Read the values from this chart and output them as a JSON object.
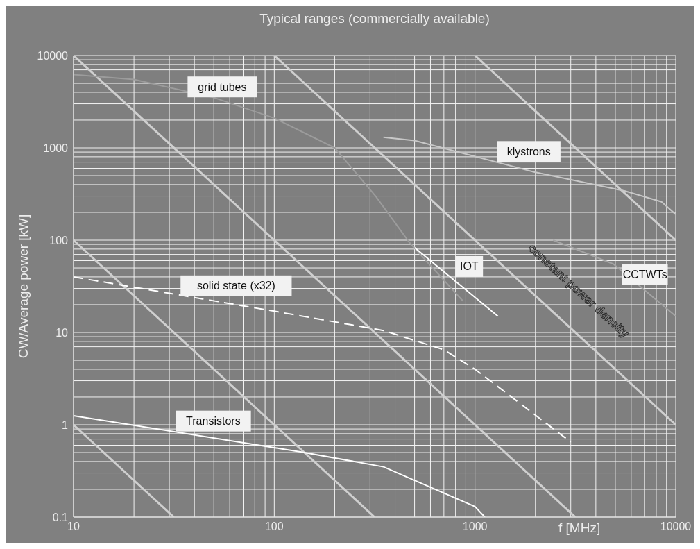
{
  "chart_data": {
    "type": "line",
    "title": "Typical ranges (commercially available)",
    "xlabel": "f [MHz]",
    "ylabel": "CW/Average power [kW]",
    "log": "xy",
    "grid": true,
    "legend": false,
    "marker": "none",
    "xlim": [
      10,
      10000
    ],
    "ylim": [
      0.1,
      10000
    ],
    "xticks": [
      10,
      {
        "value": 20,
        "label": null
      },
      {
        "value": 30,
        "label": null
      },
      {
        "value": 40,
        "label": null
      },
      {
        "value": 50,
        "label": null
      },
      {
        "value": 60,
        "label": null
      },
      {
        "value": 70,
        "label": null
      },
      {
        "value": 80,
        "label": null
      },
      {
        "value": 90,
        "label": null
      },
      100,
      {
        "value": 200,
        "label": null
      },
      {
        "value": 300,
        "label": null
      },
      {
        "value": 400,
        "label": null
      },
      {
        "value": 500,
        "label": null
      },
      {
        "value": 600,
        "label": null
      },
      {
        "value": 700,
        "label": null
      },
      {
        "value": 800,
        "label": null
      },
      {
        "value": 900,
        "label": null
      },
      1000,
      {
        "value": 2000,
        "label": null
      },
      {
        "value": 3000,
        "label": null
      },
      {
        "value": 4000,
        "label": null
      },
      {
        "value": 5000,
        "label": null
      },
      {
        "value": 6000,
        "label": null
      },
      {
        "value": 7000,
        "label": null
      },
      {
        "value": 8000,
        "label": null
      },
      {
        "value": 9000,
        "label": null
      },
      10000
    ],
    "yticks": [
      0.1,
      {
        "value": 0.2,
        "label": null
      },
      {
        "value": 0.3,
        "label": null
      },
      {
        "value": 0.4,
        "label": null
      },
      {
        "value": 0.5,
        "label": null
      },
      {
        "value": 0.6,
        "label": null
      },
      {
        "value": 0.7,
        "label": null
      },
      {
        "value": 0.8,
        "label": null
      },
      {
        "value": 0.9,
        "label": null
      },
      1,
      {
        "value": 2,
        "label": null
      },
      {
        "value": 3,
        "label": null
      },
      {
        "value": 4,
        "label": null
      },
      {
        "value": 5,
        "label": null
      },
      {
        "value": 6,
        "label": null
      },
      {
        "value": 7,
        "label": null
      },
      {
        "value": 8,
        "label": null
      },
      {
        "value": 9,
        "label": null
      },
      10,
      {
        "value": 20,
        "label": null
      },
      {
        "value": 30,
        "label": null
      },
      {
        "value": 40,
        "label": null
      },
      {
        "value": 50,
        "label": null
      },
      {
        "value": 60,
        "label": null
      },
      {
        "value": 70,
        "label": null
      },
      {
        "value": 80,
        "label": null
      },
      {
        "value": 90,
        "label": null
      },
      100,
      {
        "value": 200,
        "label": null
      },
      {
        "value": 300,
        "label": null
      },
      {
        "value": 400,
        "label": null
      },
      {
        "value": 500,
        "label": null
      },
      {
        "value": 600,
        "label": null
      },
      {
        "value": 700,
        "label": null
      },
      {
        "value": 800,
        "label": null
      },
      {
        "value": 900,
        "label": null
      },
      1000,
      {
        "value": 2000,
        "label": null
      },
      {
        "value": 3000,
        "label": null
      },
      {
        "value": 4000,
        "label": null
      },
      {
        "value": 5000,
        "label": null
      },
      {
        "value": 6000,
        "label": null
      },
      {
        "value": 7000,
        "label": null
      },
      {
        "value": 8000,
        "label": null
      },
      {
        "value": 9000,
        "label": null
      },
      10000
    ],
    "series": [
      {
        "color": "#cfcfcf",
        "x": [
          10,
          3162
        ],
        "values": [
          10000,
          0.1
        ]
      },
      {
        "color": "#cfcfcf",
        "x": [
          10,
          316
        ],
        "values": [
          100,
          0.1
        ]
      },
      {
        "color": "#cfcfcf",
        "x": [
          10,
          31.6
        ],
        "values": [
          1,
          0.1
        ]
      },
      {
        "color": "#cfcfcf",
        "x": [
          100,
          10000
        ],
        "values": [
          10000,
          1
        ]
      },
      {
        "color": "#cfcfcf",
        "x": [
          1000,
          10000
        ],
        "values": [
          10000,
          100
        ]
      },
      {
        "color": "#9c9c9c",
        "x": [
          10,
          20,
          50,
          100,
          200,
          320,
          470,
          870
        ],
        "values": [
          6200,
          5500,
          3500,
          2100,
          1000,
          300,
          95,
          22
        ]
      },
      {
        "color": "#c8c8c8",
        "x": [
          350,
          500,
          1950,
          5600,
          8500,
          10000
        ],
        "values": [
          1300,
          1200,
          550,
          340,
          260,
          190
        ]
      },
      {
        "color": "#a4a4a4",
        "x": [
          2450,
          4900,
          10000
        ],
        "values": [
          100,
          55,
          15
        ]
      },
      {
        "color": "#ffffff",
        "x": [
          500,
          1300
        ],
        "values": [
          83,
          15
        ]
      },
      {
        "color": "#ffffff",
        "line_style": "dashed",
        "x": [
          10,
          100,
          350,
          700,
          1000,
          3000
        ],
        "values": [
          40,
          17,
          10.5,
          6.5,
          4,
          0.65
        ]
      },
      {
        "color": "#ffffff",
        "x": [
          10,
          135,
          350,
          1000,
          1120
        ],
        "values": [
          1.25,
          0.51,
          0.35,
          0.13,
          0.1
        ]
      }
    ],
    "annotations": [
      "grid tubes",
      "klystrons",
      "IOT",
      "CCTWTs",
      "solid state (x32)",
      "Transistors",
      "constant power density"
    ]
  }
}
